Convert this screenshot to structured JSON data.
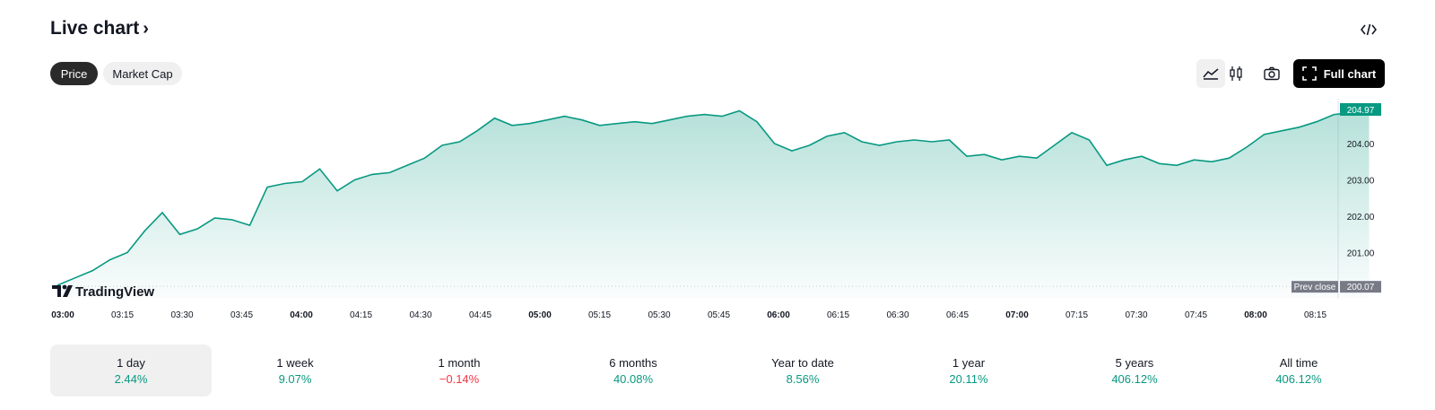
{
  "header": {
    "title": "Live chart",
    "title_chevron": "›",
    "embed_icon": "code-icon"
  },
  "toggles": [
    {
      "label": "Price",
      "active": true
    },
    {
      "label": "Market Cap",
      "active": false
    }
  ],
  "toolbar": {
    "area_icon": "area-chart-icon",
    "candle_icon": "candlestick-icon",
    "camera_icon": "camera-icon",
    "full_chart_label": "Full chart",
    "full_chart_icon": "expand-icon"
  },
  "chart_data": {
    "type": "area",
    "branding": "TradingView",
    "line_color": "#089981",
    "current_price": "204.97",
    "prev_close_label": "Prev close",
    "prev_close_value": "200.07",
    "prev_close": 200.07,
    "y_ticks": [
      "204.00",
      "203.00",
      "202.00",
      "201.00"
    ],
    "y_tick_values": [
      204,
      203,
      202,
      201
    ],
    "x_ticks": [
      {
        "label": "03:00",
        "bold": true
      },
      {
        "label": "03:15",
        "bold": false
      },
      {
        "label": "03:30",
        "bold": false
      },
      {
        "label": "03:45",
        "bold": false
      },
      {
        "label": "04:00",
        "bold": true
      },
      {
        "label": "04:15",
        "bold": false
      },
      {
        "label": "04:30",
        "bold": false
      },
      {
        "label": "04:45",
        "bold": false
      },
      {
        "label": "05:00",
        "bold": true
      },
      {
        "label": "05:15",
        "bold": false
      },
      {
        "label": "05:30",
        "bold": false
      },
      {
        "label": "05:45",
        "bold": false
      },
      {
        "label": "06:00",
        "bold": true
      },
      {
        "label": "06:15",
        "bold": false
      },
      {
        "label": "06:30",
        "bold": false
      },
      {
        "label": "06:45",
        "bold": false
      },
      {
        "label": "07:00",
        "bold": true
      },
      {
        "label": "07:15",
        "bold": false
      },
      {
        "label": "07:30",
        "bold": false
      },
      {
        "label": "07:45",
        "bold": false
      },
      {
        "label": "08:00",
        "bold": true
      },
      {
        "label": "08:15",
        "bold": false
      }
    ],
    "series": [
      {
        "time_start": "03:00",
        "interval_minutes": 5,
        "values": [
          200.1,
          200.3,
          200.5,
          200.8,
          201.0,
          201.6,
          202.1,
          201.5,
          201.65,
          201.95,
          201.9,
          201.75,
          202.8,
          202.9,
          202.95,
          203.3,
          202.7,
          203.0,
          203.15,
          203.2,
          203.4,
          203.6,
          203.95,
          204.05,
          204.35,
          204.7,
          204.5,
          204.55,
          204.65,
          204.75,
          204.65,
          204.5,
          204.55,
          204.6,
          204.55,
          204.65,
          204.75,
          204.8,
          204.75,
          204.9,
          204.6,
          204.0,
          203.8,
          203.95,
          204.2,
          204.3,
          204.05,
          203.95,
          204.05,
          204.1,
          204.05,
          204.1,
          203.65,
          203.7,
          203.55,
          203.65,
          203.6,
          203.95,
          204.3,
          204.1,
          203.4,
          203.55,
          203.65,
          203.45,
          203.4,
          203.55,
          203.5,
          203.6,
          203.9,
          204.25,
          204.35,
          204.45,
          204.6,
          204.8,
          204.85,
          204.95
        ]
      }
    ]
  },
  "periods": [
    {
      "label": "1 day",
      "value": "2.44%",
      "positive": true,
      "active": true
    },
    {
      "label": "1 week",
      "value": "9.07%",
      "positive": true,
      "active": false
    },
    {
      "label": "1 month",
      "value": "−0.14%",
      "positive": false,
      "active": false
    },
    {
      "label": "6 months",
      "value": "40.08%",
      "positive": true,
      "active": false
    },
    {
      "label": "Year to date",
      "value": "8.56%",
      "positive": true,
      "active": false
    },
    {
      "label": "1 year",
      "value": "20.11%",
      "positive": true,
      "active": false
    },
    {
      "label": "5 years",
      "value": "406.12%",
      "positive": true,
      "active": false
    },
    {
      "label": "All time",
      "value": "406.12%",
      "positive": true,
      "active": false
    }
  ],
  "colors": {
    "positive": "#089981",
    "negative": "#f23645",
    "accent_dark": "#000000"
  }
}
